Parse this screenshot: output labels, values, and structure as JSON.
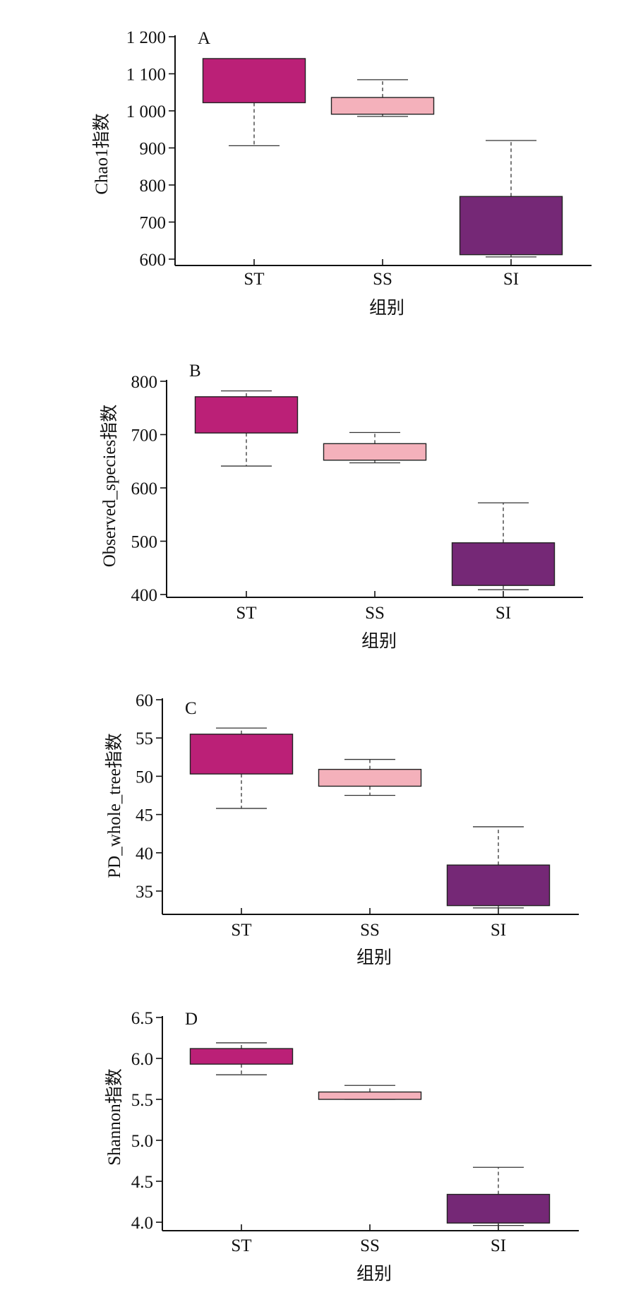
{
  "chart_data": [
    {
      "type": "box",
      "panel_label": "A",
      "ylabel": "Chao1指数",
      "xlabel": "组别",
      "ylim": [
        580,
        1200
      ],
      "yticks": [
        600,
        700,
        800,
        900,
        1000,
        1100,
        1200
      ],
      "ytick_labels": [
        "600",
        "700",
        "800",
        "900",
        "1 000",
        "1 100",
        "1 200"
      ],
      "categories": [
        "ST",
        "SS",
        "SI"
      ],
      "colors": [
        "#bb2077",
        "#f4b1bb",
        "#752876"
      ],
      "boxes": [
        {
          "whisker_low": 906,
          "q1": 1022,
          "q3": 1141,
          "whisker_high": 1141
        },
        {
          "whisker_low": 985,
          "q1": 991,
          "q3": 1036,
          "whisker_high": 1084
        },
        {
          "whisker_low": 606,
          "q1": 612,
          "q3": 769,
          "whisker_high": 920
        }
      ]
    },
    {
      "type": "box",
      "panel_label": "B",
      "ylabel": "Observed_species指数",
      "xlabel": "组别",
      "ylim": [
        395,
        800
      ],
      "yticks": [
        400,
        500,
        600,
        700,
        800
      ],
      "ytick_labels": [
        "400",
        "500",
        "600",
        "700",
        "800"
      ],
      "categories": [
        "ST",
        "SS",
        "SI"
      ],
      "colors": [
        "#bb2077",
        "#f4b1bb",
        "#752876"
      ],
      "boxes": [
        {
          "whisker_low": 641,
          "q1": 703,
          "q3": 771,
          "whisker_high": 782
        },
        {
          "whisker_low": 647,
          "q1": 652,
          "q3": 683,
          "whisker_high": 704
        },
        {
          "whisker_low": 409,
          "q1": 417,
          "q3": 497,
          "whisker_high": 572
        }
      ]
    },
    {
      "type": "box",
      "panel_label": "C",
      "ylabel": "PD_whole_tree指数",
      "xlabel": "组别",
      "ylim": [
        32,
        60
      ],
      "yticks": [
        35,
        40,
        45,
        50,
        55,
        60
      ],
      "ytick_labels": [
        "35",
        "40",
        "45",
        "50",
        "55",
        "60"
      ],
      "categories": [
        "ST",
        "SS",
        "SI"
      ],
      "colors": [
        "#bb2077",
        "#f4b1bb",
        "#752876"
      ],
      "boxes": [
        {
          "whisker_low": 45.8,
          "q1": 50.3,
          "q3": 55.5,
          "whisker_high": 56.3
        },
        {
          "whisker_low": 47.5,
          "q1": 48.7,
          "q3": 50.9,
          "whisker_high": 52.2
        },
        {
          "whisker_low": 32.8,
          "q1": 33.1,
          "q3": 38.4,
          "whisker_high": 43.4
        }
      ]
    },
    {
      "type": "box",
      "panel_label": "D",
      "ylabel": "Shannon指数",
      "xlabel": "组别",
      "ylim": [
        3.88,
        6.5
      ],
      "yticks": [
        4.0,
        4.5,
        5.0,
        5.5,
        6.0,
        6.5
      ],
      "ytick_labels": [
        "4.0",
        "4.5",
        "5.0",
        "5.5",
        "6.0",
        "6.5"
      ],
      "categories": [
        "ST",
        "SS",
        "SI"
      ],
      "colors": [
        "#bb2077",
        "#f4b1bb",
        "#752876"
      ],
      "boxes": [
        {
          "whisker_low": 5.8,
          "q1": 5.93,
          "q3": 6.12,
          "whisker_high": 6.19
        },
        {
          "whisker_low": 5.5,
          "q1": 5.5,
          "q3": 5.59,
          "whisker_high": 5.67
        },
        {
          "whisker_low": 3.96,
          "q1": 3.99,
          "q3": 4.34,
          "whisker_high": 4.67
        }
      ]
    }
  ]
}
